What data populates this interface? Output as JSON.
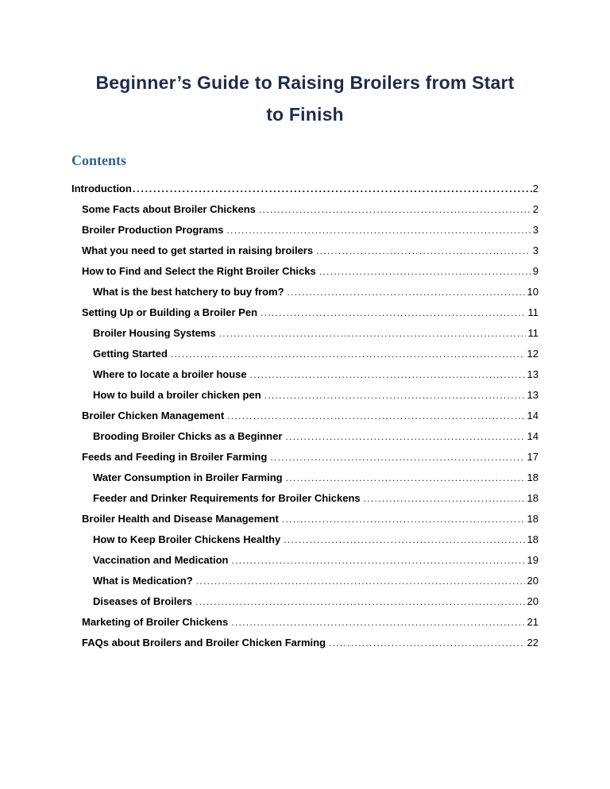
{
  "colors": {
    "title": "#1f2b4a",
    "contents_heading": "#365f91",
    "toc_text": "#000000",
    "leader_dots": "#1a1a1a",
    "page_background": "#ffffff"
  },
  "document": {
    "title": {
      "line1": "Beginner’s Guide to Raising Broilers from Start",
      "line2": "to Finish"
    }
  },
  "toc": {
    "heading": "Contents",
    "entries": [
      {
        "label": "Introduction",
        "page": "2",
        "level": 0,
        "leader_style": "heavy"
      },
      {
        "label": "Some Facts about Broiler Chickens",
        "page": "2",
        "level": 1,
        "leader_style": "fine"
      },
      {
        "label": "Broiler Production Programs",
        "page": "3",
        "level": 1,
        "leader_style": "fine"
      },
      {
        "label": "What you need to get started in raising broilers",
        "page": "3",
        "level": 1,
        "leader_style": "fine"
      },
      {
        "label": "How to Find and Select the Right Broiler Chicks",
        "page": "9",
        "level": 1,
        "leader_style": "fine"
      },
      {
        "label": "What is the best hatchery to buy from?",
        "page": "10",
        "level": 2,
        "leader_style": "fine"
      },
      {
        "label": "Setting Up or Building a Broiler Pen",
        "page": "11",
        "level": 1,
        "leader_style": "fine"
      },
      {
        "label": "Broiler Housing Systems",
        "page": "11",
        "level": 2,
        "leader_style": "fine"
      },
      {
        "label": "Getting Started",
        "page": "12",
        "level": 2,
        "leader_style": "fine"
      },
      {
        "label": "Where to locate a broiler house",
        "page": "13",
        "level": 2,
        "leader_style": "fine"
      },
      {
        "label": "How to build a broiler chicken pen",
        "page": "13",
        "level": 2,
        "leader_style": "fine"
      },
      {
        "label": "Broiler Chicken Management",
        "page": "14",
        "level": 1,
        "leader_style": "fine"
      },
      {
        "label": "Brooding Broiler Chicks as a Beginner",
        "page": "14",
        "level": 2,
        "leader_style": "fine"
      },
      {
        "label": "Feeds and Feeding in Broiler Farming",
        "page": "17",
        "level": 1,
        "leader_style": "fine"
      },
      {
        "label": "Water Consumption in Broiler Farming",
        "page": "18",
        "level": 2,
        "leader_style": "fine"
      },
      {
        "label": "Feeder and Drinker Requirements for Broiler Chickens",
        "page": "18",
        "level": 2,
        "leader_style": "fine"
      },
      {
        "label": "Broiler Health and Disease Management",
        "page": "18",
        "level": 1,
        "leader_style": "fine"
      },
      {
        "label": "How to Keep Broiler Chickens Healthy",
        "page": "18",
        "level": 2,
        "leader_style": "fine"
      },
      {
        "label": "Vaccination and Medication",
        "page": "19",
        "level": 2,
        "leader_style": "fine"
      },
      {
        "label": "What is Medication?",
        "page": "20",
        "level": 2,
        "leader_style": "fine"
      },
      {
        "label": "Diseases of Broilers",
        "page": "20",
        "level": 2,
        "leader_style": "fine"
      },
      {
        "label": "Marketing of Broiler Chickens",
        "page": "21",
        "level": 1,
        "leader_style": "fine"
      },
      {
        "label": "FAQs about Broilers and Broiler Chicken Farming",
        "page": "22",
        "level": 1,
        "leader_style": "fine"
      }
    ]
  }
}
